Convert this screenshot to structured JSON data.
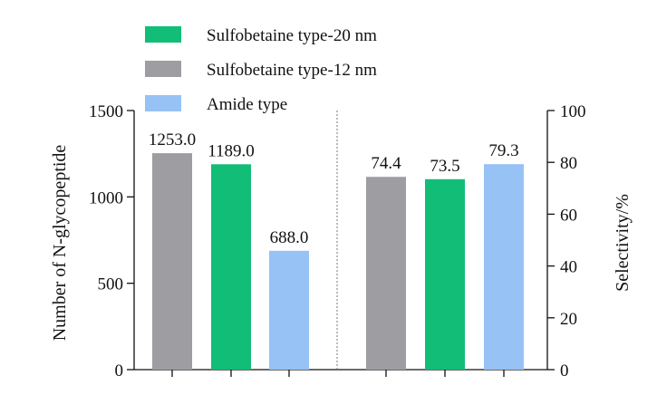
{
  "chart_data": {
    "type": "bar",
    "legend": {
      "placement": "top-left",
      "entries": [
        {
          "label": "Sulfobetaine type-20 nm",
          "color": "#12bd78"
        },
        {
          "label": "Sulfobetaine type-12 nm",
          "color": "#9d9da2"
        },
        {
          "label": "Amide type",
          "color": "#96c2f5"
        }
      ]
    },
    "left_axis": {
      "label": "Number of N-glycopeptide",
      "ylim": [
        0,
        1500
      ],
      "ticks": [
        "0",
        "500",
        "1000",
        "1500"
      ],
      "bars": [
        {
          "series": "Sulfobetaine type-12 nm",
          "value": 1253.0,
          "label": "1253.0"
        },
        {
          "series": "Sulfobetaine type-20 nm",
          "value": 1189.0,
          "label": "1189.0"
        },
        {
          "series": "Amide type",
          "value": 688.0,
          "label": "688.0"
        }
      ]
    },
    "right_axis": {
      "label": "Selectivity/%",
      "ylim": [
        0,
        100
      ],
      "ticks": [
        "0",
        "20",
        "40",
        "60",
        "80",
        "100"
      ],
      "bars": [
        {
          "series": "Sulfobetaine type-12 nm",
          "value": 74.4,
          "label": "74.4"
        },
        {
          "series": "Sulfobetaine type-20 nm",
          "value": 73.5,
          "label": "73.5"
        },
        {
          "series": "Amide type",
          "value": 79.3,
          "label": "79.3"
        }
      ]
    },
    "grid": false
  }
}
